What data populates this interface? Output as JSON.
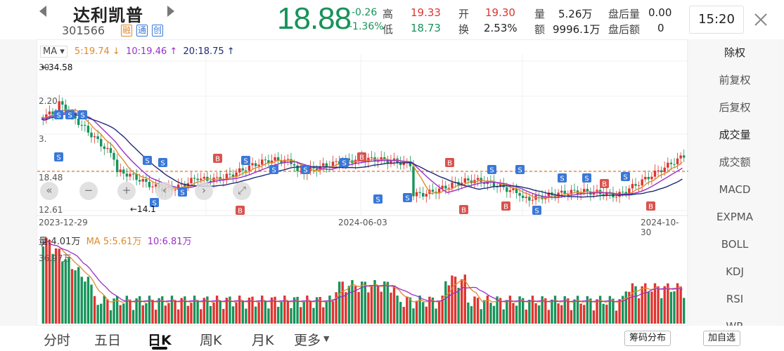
{
  "header": {
    "stock_name": "达利凯普",
    "stock_code": "301566",
    "tags": [
      "融",
      "通",
      "创"
    ],
    "price": "18.88",
    "change": "-0.26",
    "change_pct": "-1.36%",
    "quote": {
      "high_label": "高",
      "high": "19.33",
      "low_label": "低",
      "low": "18.73",
      "open_label": "开",
      "open": "19.30",
      "turnover_label": "换",
      "turnover": "2.53%",
      "volume_label": "量",
      "volume": "5.26万",
      "amount_label": "额",
      "amount": "9996.1万",
      "after_vol_label": "盘后量",
      "after_vol": "0.00",
      "after_amt_label": "盘后额",
      "after_amt": "0"
    },
    "time": "15:20"
  },
  "chart": {
    "ma_button": "MA",
    "ma5": "5:19.74 ↓",
    "ma10": "10:19.46 ↑",
    "ma20": "20:18.75 ↑",
    "y_labels": [
      "34.58",
      "12.61",
      "18.48"
    ],
    "y_partial": [
      "30.",
      "2.20",
      "3."
    ],
    "high_marker": "←34.58",
    "low_marker": "←14.1",
    "x_labels": [
      "2023-12-29",
      "2024-06-03",
      "2024-10-30"
    ],
    "vol_label": "量:4.01万",
    "vol_ma5": "MA 5:5.61万",
    "vol_ma10": "10:6.81万",
    "vol_max": "36.97万",
    "nav_buttons": [
      "«",
      "−",
      "+",
      "‹",
      "›",
      "⤢"
    ]
  },
  "chart_data": {
    "type": "candlestick",
    "x_range": [
      "2023-12-29",
      "2024-10-30"
    ],
    "ylim": [
      12.61,
      34.58
    ],
    "last_close": 18.88,
    "reference_line": 18.48,
    "ma": {
      "ma5": 19.74,
      "ma10": 19.46,
      "ma20": 18.75
    },
    "volume": {
      "current": "4.01万",
      "ma5": "5.61万",
      "ma10": "6.81万",
      "max": "36.97万"
    }
  },
  "sidebar": {
    "items": [
      "除权",
      "前复权",
      "后复权",
      "成交量",
      "成交额",
      "MACD",
      "EXPMA",
      "BOLL",
      "KDJ",
      "RSI",
      "WR"
    ]
  },
  "tabs": [
    "分时",
    "五日",
    "日K",
    "周K",
    "月K",
    "更多"
  ],
  "buttons": {
    "chip": "筹码分布",
    "add": "加自选"
  },
  "colors": {
    "up": "#e0342f",
    "down": "#17935a",
    "ma5": "#e08a2c",
    "ma10": "#9b2fc8",
    "ma20": "#1d2a7a",
    "ref": "#e8792a"
  }
}
